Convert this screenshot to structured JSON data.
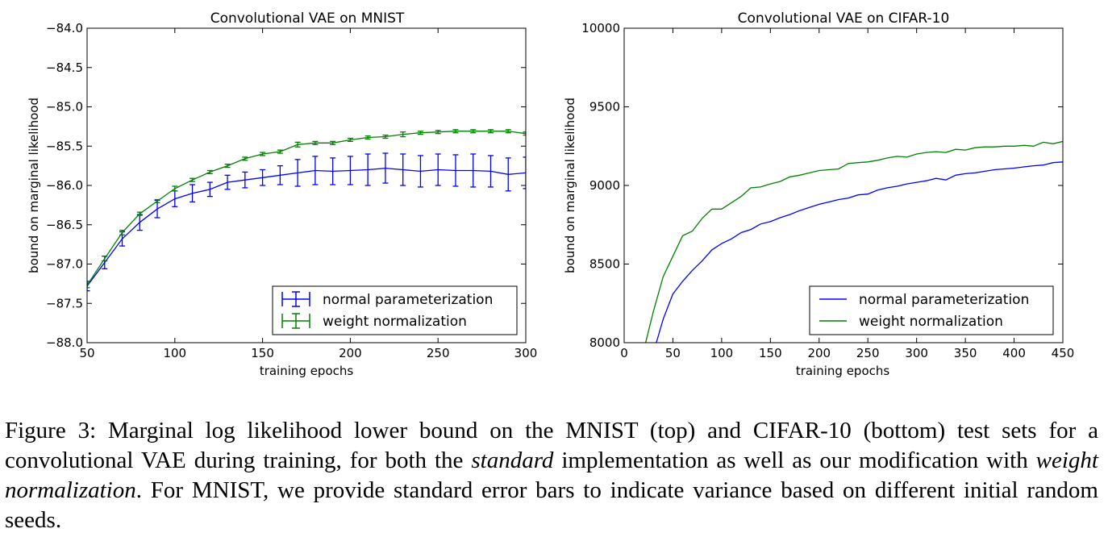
{
  "charts": {
    "mnist_title": "Convolutional VAE on MNIST",
    "cifar_title": "Convolutional VAE on CIFAR-10",
    "ylabel": "bound on marginal likelihood",
    "xlabel": "training epochs",
    "legend_normal": "normal parameterization",
    "legend_weight": "weight normalization"
  },
  "colors": {
    "normal": "#0000ff",
    "weight": "#008000",
    "axes": "#000000"
  },
  "caption": {
    "prefix": "Figure 3:  Marginal log likelihood lower bound on the MNIST (top) and CIFAR-10 (bottom) test sets for a convolutional VAE during training, for both the ",
    "em1": "standard",
    "middle": " implementation as well as our modification with ",
    "em2": "weight normalization",
    "suffix": ".  For MNIST, we provide standard error bars to indicate variance based on different initial random seeds."
  },
  "chart_data": [
    {
      "type": "line",
      "title": "Convolutional VAE on MNIST",
      "xlabel": "training epochs",
      "ylabel": "bound on marginal likelihood",
      "xlim": [
        50,
        300
      ],
      "ylim": [
        -88.0,
        -84.0
      ],
      "xticks": [
        50,
        100,
        150,
        200,
        250,
        300
      ],
      "yticks": [
        -88.0,
        -87.5,
        -87.0,
        -86.5,
        -86.0,
        -85.5,
        -85.0,
        -84.5,
        -84.0
      ],
      "ytick_labels": [
        "−88.0",
        "−87.5",
        "−87.0",
        "−86.5",
        "−86.0",
        "−85.5",
        "−85.0",
        "−84.5",
        "−84.0"
      ],
      "grid": false,
      "legend_position": "lower right",
      "error_bars": true,
      "x": [
        50,
        60,
        70,
        80,
        90,
        100,
        110,
        120,
        130,
        140,
        150,
        160,
        170,
        180,
        190,
        200,
        210,
        220,
        230,
        240,
        250,
        260,
        270,
        280,
        290,
        300
      ],
      "series": [
        {
          "name": "normal parameterization",
          "color": "#0000ff",
          "values": [
            -87.28,
            -86.98,
            -86.68,
            -86.47,
            -86.3,
            -86.17,
            -86.1,
            -86.05,
            -85.96,
            -85.93,
            -85.9,
            -85.87,
            -85.84,
            -85.81,
            -85.82,
            -85.81,
            -85.8,
            -85.78,
            -85.8,
            -85.82,
            -85.8,
            -85.81,
            -85.81,
            -85.82,
            -85.86,
            -85.84
          ],
          "errors": [
            0.06,
            0.08,
            0.09,
            0.1,
            0.11,
            0.1,
            0.11,
            0.09,
            0.09,
            0.1,
            0.1,
            0.12,
            0.17,
            0.18,
            0.17,
            0.18,
            0.2,
            0.19,
            0.2,
            0.2,
            0.2,
            0.2,
            0.21,
            0.2,
            0.21,
            0.2
          ]
        },
        {
          "name": "weight normalization",
          "color": "#008000",
          "values": [
            -87.27,
            -86.93,
            -86.6,
            -86.36,
            -86.2,
            -86.04,
            -85.93,
            -85.83,
            -85.75,
            -85.66,
            -85.6,
            -85.57,
            -85.48,
            -85.46,
            -85.46,
            -85.42,
            -85.39,
            -85.38,
            -85.35,
            -85.33,
            -85.32,
            -85.31,
            -85.31,
            -85.31,
            -85.31,
            -85.34
          ],
          "errors": [
            0.03,
            0.03,
            0.03,
            0.02,
            0.02,
            0.03,
            0.02,
            0.02,
            0.02,
            0.02,
            0.02,
            0.02,
            0.03,
            0.02,
            0.02,
            0.02,
            0.02,
            0.02,
            0.03,
            0.02,
            0.02,
            0.02,
            0.02,
            0.02,
            0.02,
            0.02
          ]
        }
      ]
    },
    {
      "type": "line",
      "title": "Convolutional VAE on CIFAR-10",
      "xlabel": "training epochs",
      "ylabel": "bound on marginal likelihood",
      "xlim": [
        0,
        450
      ],
      "ylim": [
        8000,
        10000
      ],
      "xticks": [
        0,
        50,
        100,
        150,
        200,
        250,
        300,
        350,
        400,
        450
      ],
      "yticks": [
        8000,
        8500,
        9000,
        9500,
        10000
      ],
      "ytick_labels": [
        "8000",
        "8500",
        "9000",
        "9500",
        "10000"
      ],
      "grid": false,
      "legend_position": "lower right",
      "series": [
        {
          "name": "normal parameterization",
          "color": "#0000ff",
          "x": [
            33,
            40,
            50,
            60,
            70,
            80,
            90,
            100,
            110,
            120,
            130,
            140,
            150,
            160,
            170,
            180,
            190,
            200,
            210,
            220,
            230,
            240,
            250,
            260,
            270,
            280,
            290,
            300,
            310,
            320,
            330,
            340,
            350,
            360,
            370,
            380,
            390,
            400,
            410,
            420,
            430,
            440,
            450
          ],
          "values": [
            8000,
            8150,
            8310,
            8390,
            8460,
            8520,
            8590,
            8630,
            8660,
            8700,
            8720,
            8755,
            8770,
            8795,
            8815,
            8840,
            8860,
            8880,
            8895,
            8910,
            8920,
            8940,
            8945,
            8970,
            8985,
            8995,
            9010,
            9020,
            9030,
            9045,
            9035,
            9065,
            9075,
            9080,
            9090,
            9100,
            9105,
            9110,
            9118,
            9125,
            9130,
            9145,
            9150
          ]
        },
        {
          "name": "weight normalization",
          "color": "#008000",
          "x": [
            22,
            30,
            40,
            50,
            60,
            70,
            80,
            90,
            100,
            110,
            120,
            130,
            140,
            150,
            160,
            170,
            180,
            190,
            200,
            210,
            220,
            230,
            240,
            250,
            260,
            270,
            280,
            290,
            300,
            310,
            320,
            330,
            340,
            350,
            360,
            370,
            380,
            390,
            400,
            410,
            420,
            430,
            440,
            450
          ],
          "values": [
            8000,
            8200,
            8420,
            8550,
            8680,
            8710,
            8790,
            8850,
            8850,
            8890,
            8930,
            8985,
            8990,
            9010,
            9025,
            9055,
            9065,
            9080,
            9095,
            9100,
            9105,
            9140,
            9145,
            9150,
            9160,
            9175,
            9185,
            9180,
            9200,
            9210,
            9215,
            9210,
            9230,
            9225,
            9240,
            9245,
            9245,
            9250,
            9250,
            9255,
            9250,
            9275,
            9265,
            9280
          ]
        }
      ]
    }
  ]
}
